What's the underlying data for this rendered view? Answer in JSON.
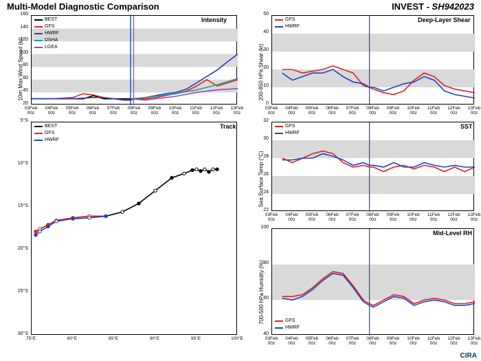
{
  "header": {
    "title_left": "Multi-Model Diagnostic Comparison",
    "title_right_prefix": "INVEST - ",
    "storm_id": "SH942023"
  },
  "footer_logo": "CIRA",
  "colors": {
    "best": "#000000",
    "gfs": "#e02020",
    "hwrf": "#2040c0",
    "dsha": "#20a090",
    "lgea": "#a040c0",
    "band": "#d9d9d9",
    "grid": "#d0d0d0",
    "vline": "#2040c0"
  },
  "xaxis": {
    "ticks_full": [
      "03Feb\n00z",
      "04Feb\n00z",
      "05Feb\n00z",
      "06Feb\n00z",
      "07Feb\n00z",
      "08Feb\n00z",
      "09Feb\n00z",
      "10Feb\n00z",
      "11Feb\n00z",
      "12Feb\n00z",
      "13Feb\n00z"
    ],
    "now_index": 4.8
  },
  "intensity": {
    "subtitle": "Intensity",
    "ylabel": "10m Max Wind Speed (kt)",
    "ylim": [
      20,
      160
    ],
    "ytick_step": 20,
    "band_pairs": [
      [
        40,
        60
      ],
      [
        80,
        100
      ],
      [
        120,
        140
      ]
    ],
    "series": {
      "BEST": [
        [
          0,
          30
        ],
        [
          0.5,
          30
        ],
        [
          1,
          30
        ],
        [
          1.5,
          30
        ],
        [
          2,
          30
        ],
        [
          2.5,
          30
        ],
        [
          3,
          35
        ],
        [
          3.5,
          30
        ],
        [
          4,
          30
        ],
        [
          4.5,
          30
        ],
        [
          4.8,
          30
        ]
      ],
      "GFS": [
        [
          0,
          30
        ],
        [
          1,
          30
        ],
        [
          2,
          32
        ],
        [
          2.5,
          38
        ],
        [
          3,
          36
        ],
        [
          3.5,
          32
        ],
        [
          4,
          30
        ],
        [
          4.5,
          28
        ],
        [
          4.8,
          28
        ],
        [
          5,
          30
        ],
        [
          5.5,
          30
        ],
        [
          6,
          32
        ],
        [
          6.5,
          35
        ],
        [
          7,
          38
        ],
        [
          7.5,
          42
        ],
        [
          8,
          50
        ],
        [
          8.5,
          60
        ],
        [
          9,
          50
        ],
        [
          9.5,
          55
        ],
        [
          10,
          60
        ]
      ],
      "HWRF": [
        [
          0,
          30
        ],
        [
          1,
          30
        ],
        [
          2,
          30
        ],
        [
          3,
          32
        ],
        [
          3.5,
          32
        ],
        [
          4,
          30
        ],
        [
          4.5,
          28
        ],
        [
          4.8,
          28
        ],
        [
          5,
          30
        ],
        [
          5.5,
          32
        ],
        [
          6,
          35
        ],
        [
          6.5,
          38
        ],
        [
          7,
          40
        ],
        [
          7.5,
          45
        ],
        [
          8,
          55
        ],
        [
          8.5,
          65
        ],
        [
          9,
          75
        ],
        [
          9.5,
          88
        ],
        [
          10,
          100
        ]
      ],
      "DSHA": [
        [
          4.8,
          30
        ],
        [
          5.5,
          32
        ],
        [
          6,
          34
        ],
        [
          7,
          38
        ],
        [
          8,
          44
        ],
        [
          9,
          52
        ],
        [
          10,
          62
        ]
      ],
      "LGEA": [
        [
          4.8,
          30
        ],
        [
          5.5,
          28
        ],
        [
          6,
          30
        ],
        [
          7,
          34
        ],
        [
          8,
          40
        ],
        [
          9,
          44
        ],
        [
          10,
          46
        ]
      ]
    },
    "vlines": [
      {
        "x": 4.8,
        "c": "#2040c0"
      },
      {
        "x": 4.95,
        "c": "#a040c0"
      }
    ]
  },
  "shear": {
    "subtitle": "Deep-Layer Shear",
    "ylabel": "200-850 hPa Shear (kt)",
    "ylim": [
      0,
      50
    ],
    "ytick_step": 10,
    "band_pairs": [
      [
        10,
        20
      ],
      [
        30,
        40
      ]
    ],
    "series": {
      "GFS": [
        [
          0.5,
          20
        ],
        [
          1,
          20
        ],
        [
          1.5,
          18
        ],
        [
          2,
          19
        ],
        [
          2.5,
          20
        ],
        [
          3,
          22
        ],
        [
          3.5,
          20
        ],
        [
          4,
          18
        ],
        [
          4.5,
          11
        ],
        [
          4.8,
          10
        ],
        [
          5,
          9
        ],
        [
          5.5,
          7
        ],
        [
          6,
          6
        ],
        [
          6.5,
          8
        ],
        [
          7,
          14
        ],
        [
          7.5,
          18
        ],
        [
          8,
          16
        ],
        [
          8.5,
          11
        ],
        [
          9,
          9
        ],
        [
          9.5,
          8
        ],
        [
          10,
          7
        ]
      ],
      "HWRF": [
        [
          0.5,
          18
        ],
        [
          1,
          14
        ],
        [
          1.5,
          16
        ],
        [
          2,
          18
        ],
        [
          2.5,
          18
        ],
        [
          3,
          20
        ],
        [
          3.5,
          16
        ],
        [
          4,
          13
        ],
        [
          4.5,
          12
        ],
        [
          4.8,
          10
        ],
        [
          5,
          10
        ],
        [
          5.5,
          8
        ],
        [
          6,
          10
        ],
        [
          6.5,
          12
        ],
        [
          7,
          13
        ],
        [
          7.5,
          16
        ],
        [
          8,
          14
        ],
        [
          8.5,
          8
        ],
        [
          9,
          6
        ],
        [
          9.5,
          5
        ],
        [
          10,
          4
        ]
      ]
    }
  },
  "sst": {
    "subtitle": "SST",
    "ylabel": "Sea Surface Temp (°C)",
    "ylim": [
      22,
      32
    ],
    "ytick_step": 2,
    "band_pairs": [
      [
        24,
        26
      ],
      [
        28,
        30
      ]
    ],
    "series": {
      "GFS": [
        [
          0.5,
          28
        ],
        [
          1,
          27.5
        ],
        [
          1.5,
          28
        ],
        [
          2,
          28.5
        ],
        [
          2.5,
          28.8
        ],
        [
          3,
          28.5
        ],
        [
          3.5,
          27.5
        ],
        [
          4,
          27
        ],
        [
          4.5,
          27.2
        ],
        [
          4.8,
          27
        ],
        [
          5,
          27
        ],
        [
          5.5,
          26.5
        ],
        [
          6,
          27
        ],
        [
          6.5,
          27.2
        ],
        [
          7,
          26.8
        ],
        [
          7.5,
          27.2
        ],
        [
          8,
          27
        ],
        [
          8.5,
          26.5
        ],
        [
          9,
          27
        ],
        [
          9.5,
          26.5
        ],
        [
          10,
          27
        ]
      ],
      "HWRF": [
        [
          0.5,
          27.8
        ],
        [
          1,
          27.8
        ],
        [
          1.5,
          28
        ],
        [
          2,
          28
        ],
        [
          2.5,
          28.5
        ],
        [
          3,
          28.2
        ],
        [
          3.5,
          27.8
        ],
        [
          4,
          27.2
        ],
        [
          4.5,
          27.5
        ],
        [
          4.8,
          27.2
        ],
        [
          5,
          27.2
        ],
        [
          5.5,
          27
        ],
        [
          6,
          27.5
        ],
        [
          6.5,
          27
        ],
        [
          7,
          27
        ],
        [
          7.5,
          27.5
        ],
        [
          8,
          27.2
        ],
        [
          8.5,
          27
        ],
        [
          9,
          27.2
        ],
        [
          9.5,
          27
        ],
        [
          10,
          27
        ]
      ]
    }
  },
  "rh": {
    "subtitle": "Mid-Level RH",
    "ylabel": "700-500 hPa Humidity (%)",
    "ylim": [
      40,
      100
    ],
    "ytick_step": 20,
    "band_pairs": [
      [
        60,
        80
      ]
    ],
    "series": {
      "GFS": [
        [
          0.5,
          62
        ],
        [
          1,
          62
        ],
        [
          1.5,
          63
        ],
        [
          2,
          67
        ],
        [
          2.5,
          72
        ],
        [
          3,
          76
        ],
        [
          3.5,
          75
        ],
        [
          4,
          68
        ],
        [
          4.5,
          60
        ],
        [
          4.8,
          58
        ],
        [
          5,
          57
        ],
        [
          5.5,
          60
        ],
        [
          6,
          63
        ],
        [
          6.5,
          62
        ],
        [
          7,
          58
        ],
        [
          7.5,
          60
        ],
        [
          8,
          61
        ],
        [
          8.5,
          60
        ],
        [
          9,
          58
        ],
        [
          9.5,
          58
        ],
        [
          10,
          59
        ]
      ],
      "HWRF": [
        [
          0.5,
          61
        ],
        [
          1,
          60
        ],
        [
          1.5,
          62
        ],
        [
          2,
          66
        ],
        [
          2.5,
          71
        ],
        [
          3,
          75
        ],
        [
          3.5,
          74
        ],
        [
          4,
          67
        ],
        [
          4.5,
          59
        ],
        [
          4.8,
          57
        ],
        [
          5,
          56
        ],
        [
          5.5,
          59
        ],
        [
          6,
          62
        ],
        [
          6.5,
          61
        ],
        [
          7,
          57
        ],
        [
          7.5,
          59
        ],
        [
          8,
          60
        ],
        [
          8.5,
          59
        ],
        [
          9,
          57
        ],
        [
          9.5,
          57
        ],
        [
          10,
          58
        ]
      ]
    }
  },
  "track": {
    "subtitle": "Track",
    "xlim": [
      75,
      100
    ],
    "xtick_step": 5,
    "ylim": [
      30,
      5
    ],
    "ytick_step": 5,
    "ytick_suffix": "°S",
    "series": {
      "BEST": [
        [
          97.5,
          10.5
        ],
        [
          97,
          10.5
        ],
        [
          96.5,
          10.8
        ],
        [
          96,
          10.5
        ],
        [
          95.5,
          10.7
        ],
        [
          95,
          10.5
        ],
        [
          94.5,
          10.6
        ],
        [
          93.5,
          11
        ],
        [
          92,
          11.5
        ],
        [
          90,
          13
        ],
        [
          88,
          14.5
        ],
        [
          86,
          15.5
        ],
        [
          84,
          16
        ],
        [
          82,
          16
        ],
        [
          80,
          16.2
        ],
        [
          78,
          16.5
        ],
        [
          77,
          17
        ],
        [
          76,
          17.5
        ]
      ],
      "GFS": [
        [
          84,
          16
        ],
        [
          82,
          16
        ],
        [
          80,
          16.2
        ],
        [
          78,
          16.5
        ],
        [
          77,
          17
        ],
        [
          76,
          17.5
        ],
        [
          75.5,
          17.8
        ]
      ],
      "HWRF": [
        [
          84,
          16
        ],
        [
          82,
          16.2
        ],
        [
          80,
          16.3
        ],
        [
          78,
          16.6
        ],
        [
          77,
          17.2
        ],
        [
          76,
          17.8
        ],
        [
          75.5,
          18.2
        ]
      ]
    }
  }
}
